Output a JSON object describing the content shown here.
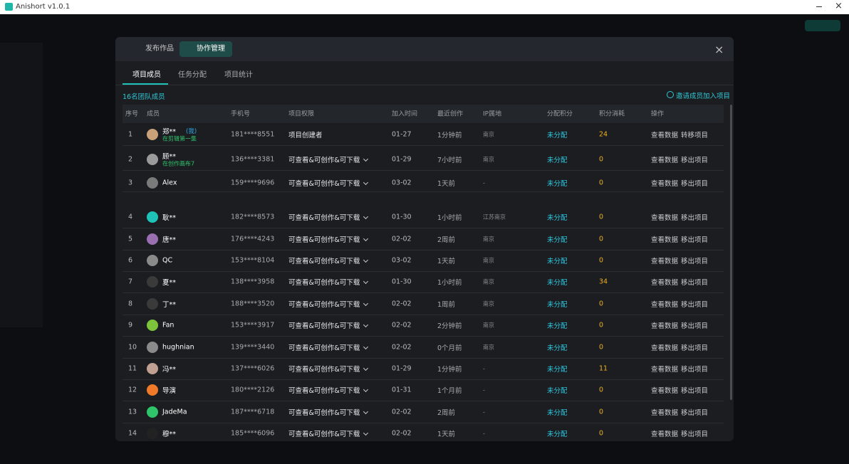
{
  "app": {
    "title": "Anishort v1.0.1"
  },
  "modal": {
    "tabs": [
      "发布作品",
      "协作管理"
    ],
    "active_tab": 1,
    "subtabs": [
      "项目成员",
      "任务分配",
      "项目统计"
    ],
    "active_subtab": 0,
    "member_count": "16名团队成员",
    "invite": "邀请成员加入项目",
    "table": {
      "headers": [
        "序号",
        "成员",
        "手机号",
        "项目权限",
        "加入时间",
        "最近创作",
        "IP属地",
        "分配积分",
        "积分消耗",
        "操作"
      ],
      "rows": [
        {
          "index": 1,
          "name": "郑**",
          "tag": "(我)",
          "status": "在剪辑第一集",
          "avatar": "#c9a27a",
          "phone": "181****8551",
          "permission": "项目创建者",
          "joined": "01-27",
          "last_active": "1分钟前",
          "ip": "南京",
          "allocation": "未分配",
          "points": 24,
          "actions": [
            "查看数据",
            "转移项目"
          ]
        },
        {
          "index": 2,
          "name": "顾**",
          "status": "在创作画布7",
          "avatar": "#9a9a9a",
          "phone": "136****3381",
          "permission": "可查看&可创作&可下载",
          "joined": "01-29",
          "last_active": "7小时前",
          "ip": "南京",
          "allocation": "未分配",
          "points": 0,
          "actions": [
            "查看数据",
            "移出项目"
          ]
        },
        {
          "index": 3,
          "name": "Alex",
          "avatar": "#7a7a7a",
          "phone": "159****9696",
          "permission": "可查看&可创作&可下载",
          "joined": "03-02",
          "last_active": "1天前",
          "ip": "-",
          "allocation": "未分配",
          "points": 0,
          "actions": [
            "查看数据",
            "移出项目"
          ]
        },
        {
          "index": 4,
          "name": "耿**",
          "avatar": "#1fc2b6",
          "phone": "182****8573",
          "permission": "可查看&可创作&可下载",
          "joined": "01-30",
          "last_active": "1小时前",
          "ip": "江苏南京",
          "allocation": "未分配",
          "points": 0,
          "actions": [
            "查看数据",
            "移出项目"
          ]
        },
        {
          "index": 5,
          "name": "唐**",
          "avatar": "#9a6fb0",
          "phone": "176****4243",
          "permission": "可查看&可创作&可下载",
          "joined": "02-02",
          "last_active": "2周前",
          "ip": "南京",
          "allocation": "未分配",
          "points": 0,
          "actions": [
            "查看数据",
            "移出项目"
          ]
        },
        {
          "index": 6,
          "name": "QC",
          "avatar": "#8a8a8a",
          "phone": "153****8104",
          "permission": "可查看&可创作&可下载",
          "joined": "03-02",
          "last_active": "1天前",
          "ip": "南京",
          "allocation": "未分配",
          "points": 0,
          "actions": [
            "查看数据",
            "移出项目"
          ]
        },
        {
          "index": 7,
          "name": "夏**",
          "avatar": "#3a3a3a",
          "phone": "138****3958",
          "permission": "可查看&可创作&可下载",
          "joined": "01-30",
          "last_active": "1小时前",
          "ip": "南京",
          "allocation": "未分配",
          "points": 34,
          "actions": [
            "查看数据",
            "移出项目"
          ]
        },
        {
          "index": 8,
          "name": "丁**",
          "avatar": "#3a3a3a",
          "phone": "188****3520",
          "permission": "可查看&可创作&可下载",
          "joined": "02-02",
          "last_active": "1周前",
          "ip": "南京",
          "allocation": "未分配",
          "points": 0,
          "actions": [
            "查看数据",
            "移出项目"
          ]
        },
        {
          "index": 9,
          "name": "Fan",
          "avatar": "#7cc43c",
          "phone": "153****3917",
          "permission": "可查看&可创作&可下载",
          "joined": "02-02",
          "last_active": "2分钟前",
          "ip": "南京",
          "allocation": "未分配",
          "points": 0,
          "actions": [
            "查看数据",
            "移出项目"
          ]
        },
        {
          "index": 10,
          "name": "hughnian",
          "avatar": "#8a8a8a",
          "phone": "139****3440",
          "permission": "可查看&可创作&可下载",
          "joined": "02-02",
          "last_active": "0个月前",
          "ip": "南京",
          "allocation": "未分配",
          "points": 0,
          "actions": [
            "查看数据",
            "移出项目"
          ]
        },
        {
          "index": 11,
          "name": "冯**",
          "avatar": "#c0a090",
          "phone": "137****6026",
          "permission": "可查看&可创作&可下载",
          "joined": "01-29",
          "last_active": "1分钟前",
          "ip": "-",
          "allocation": "未分配",
          "points": 11,
          "actions": [
            "查看数据",
            "移出项目"
          ]
        },
        {
          "index": 12,
          "name": "导演",
          "avatar": "#f07a2a",
          "phone": "180****2126",
          "permission": "可查看&可创作&可下载",
          "joined": "01-31",
          "last_active": "1个月前",
          "ip": "-",
          "allocation": "未分配",
          "points": 0,
          "actions": [
            "查看数据",
            "移出项目"
          ]
        },
        {
          "index": 13,
          "name": "JadeMa",
          "avatar": "#2fc46a",
          "phone": "187****6718",
          "permission": "可查看&可创作&可下载",
          "joined": "02-02",
          "last_active": "2周前",
          "ip": "-",
          "allocation": "未分配",
          "points": 0,
          "actions": [
            "查看数据",
            "移出项目"
          ]
        },
        {
          "index": 14,
          "name": "穆**",
          "avatar": "#222222",
          "phone": "185****6096",
          "permission": "可查看&可创作&可下载",
          "joined": "02-02",
          "last_active": "1天前",
          "ip": "-",
          "allocation": "未分配",
          "points": 0,
          "actions": [
            "查看数据",
            "移出项目"
          ]
        }
      ]
    }
  }
}
